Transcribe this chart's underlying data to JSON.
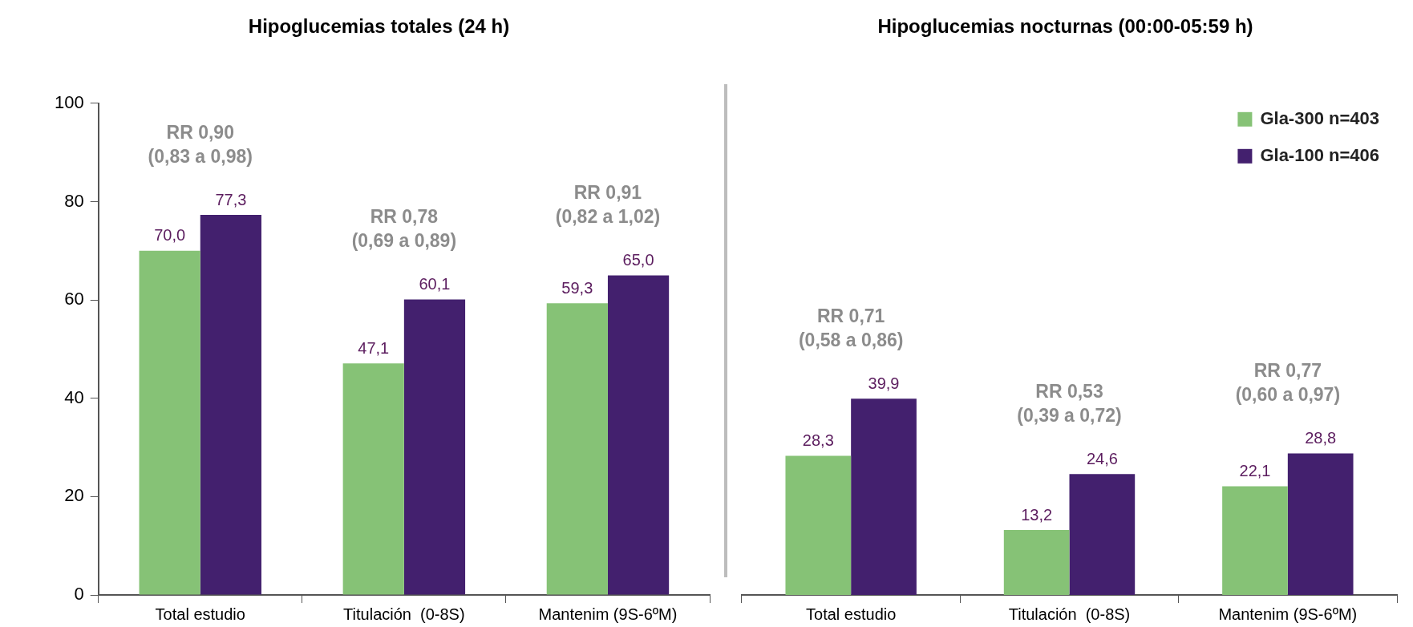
{
  "chart_data": [
    {
      "type": "bar",
      "title": "Hipoglucemias totales (24 h)",
      "categories": [
        "Total estudio",
        "Titulación  (0-8S)",
        "Mantenim (9S-6ºM)"
      ],
      "series": [
        {
          "color": "#86c276",
          "values": [
            70.0,
            47.1,
            59.3
          ],
          "value_labels": [
            "70,0",
            "47,1",
            "59,3"
          ]
        },
        {
          "color": "#43206e",
          "values": [
            77.3,
            60.1,
            65.0
          ],
          "value_labels": [
            "77,3",
            "60,1",
            "65,0"
          ]
        }
      ],
      "ylim": [
        0,
        100
      ],
      "yticks": [
        0,
        20,
        40,
        60,
        80,
        100
      ],
      "grid": false,
      "legend": false,
      "annotations": [
        "RR 0,90\n(0,83 a 0,98)",
        "RR 0,78\n(0,69 a 0,89)",
        "RR 0,91\n(0,82 a 1,02)"
      ]
    },
    {
      "type": "bar",
      "title": "Hipoglucemias nocturnas (00:00-05:59 h)",
      "categories": [
        "Total estudio",
        "Titulación  (0-8S)",
        "Mantenim (9S-6ºM)"
      ],
      "series": [
        {
          "name": "Gla-300 n=403",
          "color": "#86c276",
          "values": [
            28.3,
            13.2,
            22.1
          ],
          "value_labels": [
            "28,3",
            "13,2",
            "22,1"
          ]
        },
        {
          "name": "Gla-100 n=406",
          "color": "#43206e",
          "values": [
            39.9,
            24.6,
            28.8
          ],
          "value_labels": [
            "39,9",
            "24,6",
            "28,8"
          ]
        }
      ],
      "ylim": [
        0,
        100
      ],
      "tick_labels": "x",
      "grid": false,
      "legend": "top right",
      "annotations": [
        "RR 0,71\n(0,58 a 0,86)",
        "RR 0,53\n(0,39 a 0,72)",
        "RR 0,77\n(0,60 a 0,97)"
      ]
    }
  ]
}
